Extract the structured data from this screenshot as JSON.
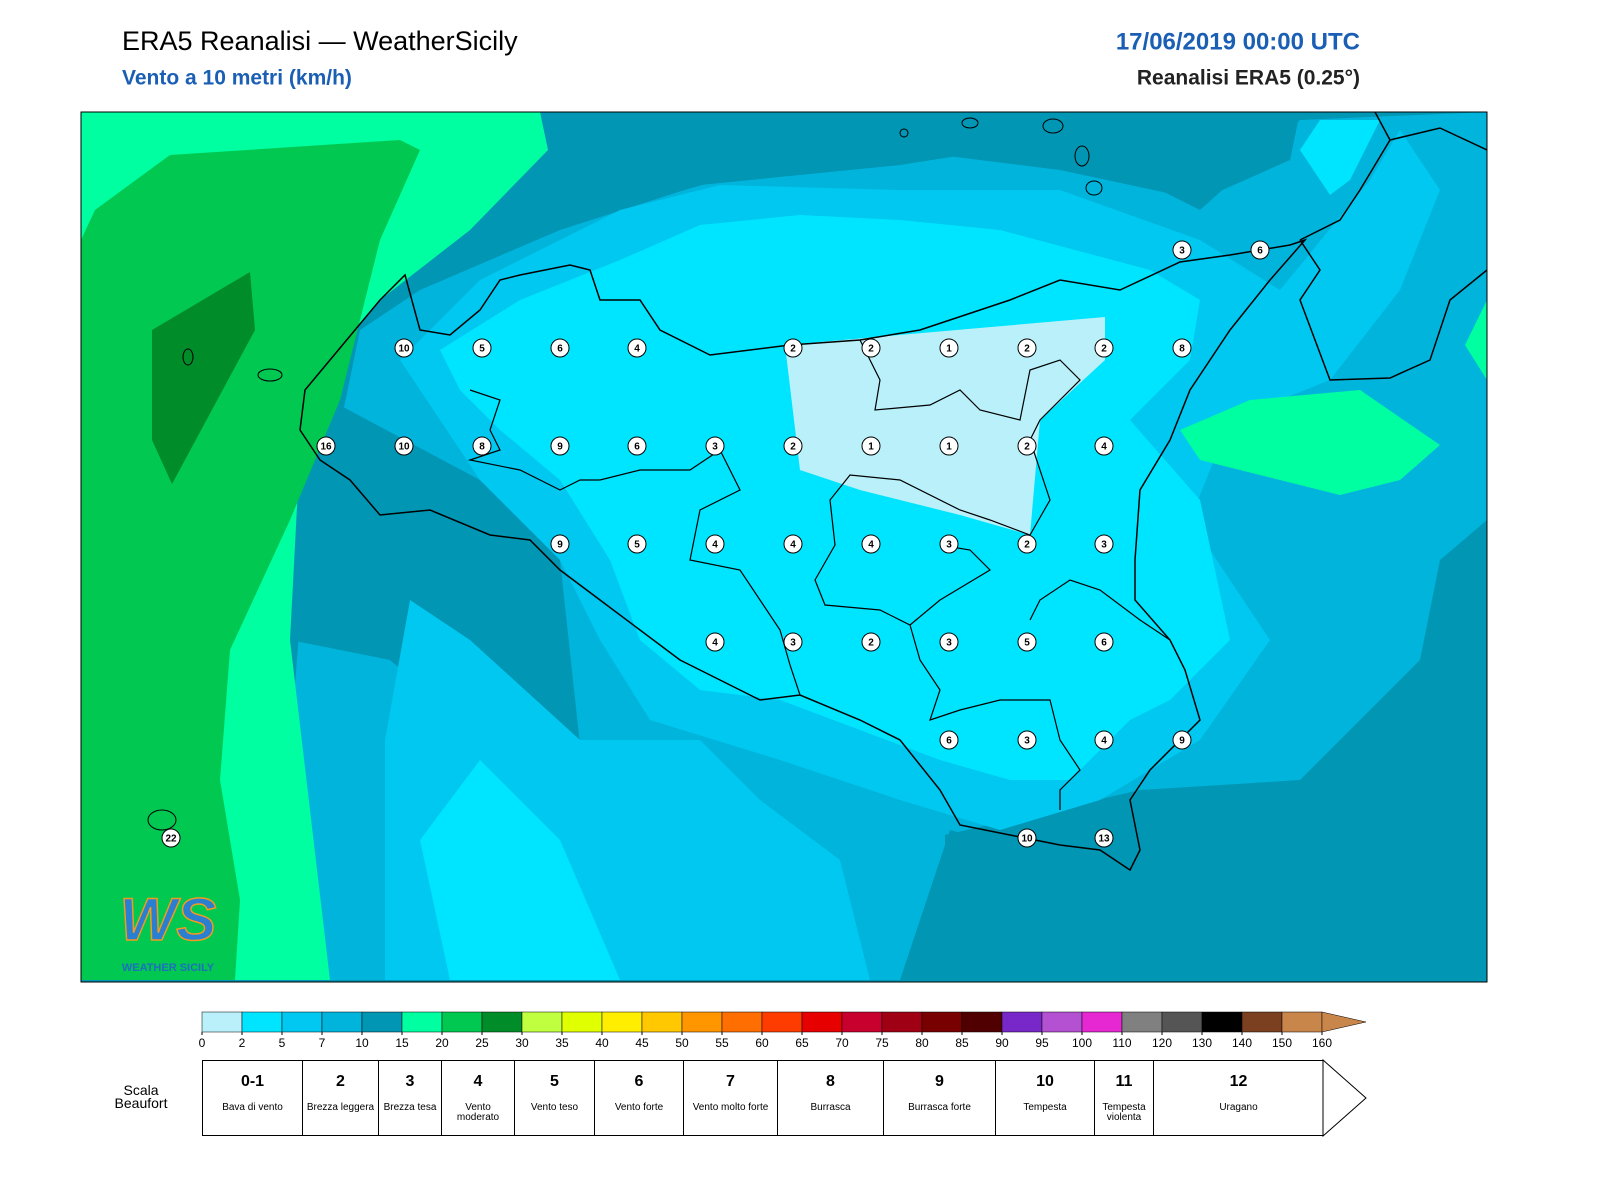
{
  "header": {
    "title": "ERA5 Reanalisi — WeatherSicily",
    "subtitle": "Vento a 10 metri (km/h)",
    "datetime": "17/06/2019 00:00 UTC",
    "source": "Reanalisi ERA5 (0.25°)"
  },
  "map": {
    "station_values": [
      3,
      6,
      10,
      5,
      6,
      4,
      2,
      2,
      1,
      2,
      2,
      8,
      16,
      10,
      8,
      9,
      6,
      3,
      2,
      1,
      1,
      2,
      4,
      9,
      5,
      4,
      4,
      4,
      3,
      2,
      3,
      4,
      3,
      2,
      3,
      5,
      6,
      6,
      3,
      4,
      9,
      22,
      10,
      13
    ]
  },
  "colorbar": {
    "ticks": [
      0,
      2,
      5,
      7,
      10,
      15,
      20,
      25,
      30,
      35,
      40,
      45,
      50,
      55,
      60,
      65,
      70,
      75,
      80,
      85,
      90,
      95,
      100,
      110,
      120,
      130,
      140,
      150,
      160
    ],
    "colors": [
      "#b9f0fa",
      "#00e5ff",
      "#00c8f0",
      "#00b4dc",
      "#0096b4",
      "#00ffa0",
      "#00c850",
      "#008c28",
      "#c0ff40",
      "#e0ff00",
      "#ffee00",
      "#ffc800",
      "#ff9600",
      "#ff6e00",
      "#ff3c00",
      "#e60000",
      "#c8002d",
      "#a00014",
      "#780000",
      "#500000",
      "#7828c8",
      "#b450d2",
      "#e628d2",
      "#808080",
      "#555555",
      "#000000",
      "#7a4020",
      "#c8864a",
      "#c8864a"
    ]
  },
  "beaufort": {
    "label": "Scala Beaufort",
    "levels": [
      {
        "force": "0-1",
        "description": "Bava di vento"
      },
      {
        "force": "2",
        "description": "Brezza leggera"
      },
      {
        "force": "3",
        "description": "Brezza tesa"
      },
      {
        "force": "4",
        "description": "Vento moderato"
      },
      {
        "force": "5",
        "description": "Vento teso"
      },
      {
        "force": "6",
        "description": "Vento forte"
      },
      {
        "force": "7",
        "description": "Vento molto forte"
      },
      {
        "force": "8",
        "description": "Burrasca"
      },
      {
        "force": "9",
        "description": "Burrasca forte"
      },
      {
        "force": "10",
        "description": "Tempesta"
      },
      {
        "force": "11",
        "description": "Tempesta violenta"
      },
      {
        "force": "12",
        "description": "Uragano"
      }
    ]
  },
  "logo": {
    "mark": "WS",
    "text": "WEATHER SICILY"
  }
}
